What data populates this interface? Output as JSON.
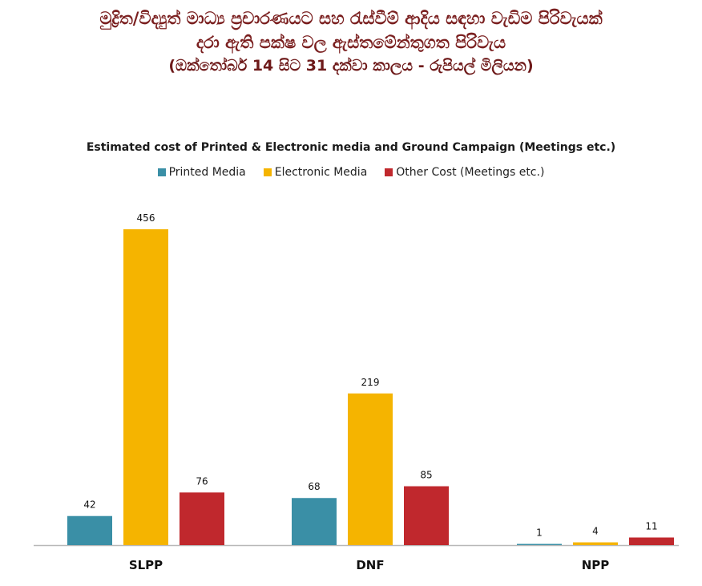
{
  "header": {
    "line1": "මුද්‍රිත/විද්‍යුත් මාධ්‍ය ප්‍රචාරණයට සහ රැස්වීම් ආදිය සඳහා වැඩිම පිරිවැයක්",
    "line2": "දරා ඇති පක්ෂ වල ඇස්තමේන්තුගත පිරිවැය",
    "line3": "(ඔක්තෝබර් 14 සිට 31 දක්වා කාලය - රුපියල් මිලියන)"
  },
  "chart_data": {
    "type": "bar",
    "title": "Estimated cost of Printed & Electronic media and Ground Campaign (Meetings etc.)",
    "categories": [
      "SLPP",
      "DNF",
      "NPP"
    ],
    "series": [
      {
        "name": "Printed Media",
        "color": "#3a8fa6",
        "values": [
          42,
          68,
          1
        ]
      },
      {
        "name": "Electronic Media",
        "color": "#f5b400",
        "values": [
          456,
          219,
          4
        ]
      },
      {
        "name": "Other Cost (Meetings etc.)",
        "color": "#c0282d",
        "values": [
          76,
          85,
          11
        ]
      }
    ],
    "ylim": [
      0,
      456
    ],
    "legend_position": "top",
    "grid": false
  }
}
